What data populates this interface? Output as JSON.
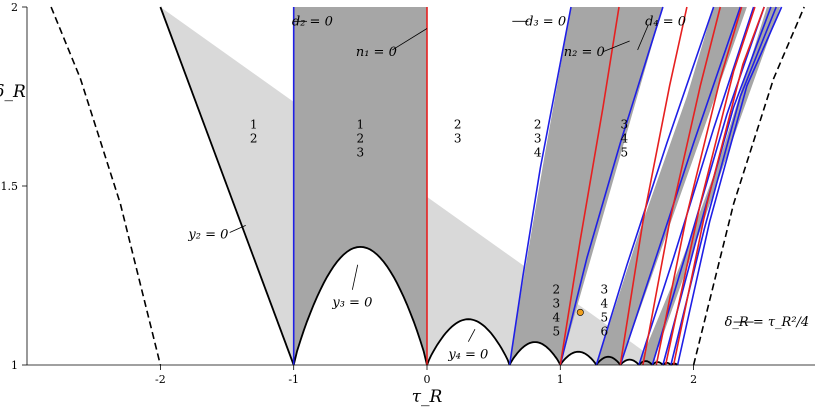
{
  "chart_data": {
    "type": "diagram",
    "xlabel": "τ_R",
    "ylabel": "δ_R",
    "xlim": [
      -3.0,
      2.9
    ],
    "ylim": [
      1.0,
      2.0
    ],
    "x_ticks": [
      "-2",
      "-1",
      "0",
      "1",
      "2"
    ],
    "y_ticks": [
      "1",
      "1.5",
      "2"
    ],
    "colors": {
      "light_region": "#d9d9d9",
      "dark_region": "#a6a6a6",
      "boundary": "#000000",
      "d_curves": "#1f1fe6",
      "n_curves": "#e62020",
      "marker": "#f0a020"
    },
    "curve_labels": [
      {
        "id": "d2",
        "text": "d₂ = 0",
        "x": -0.86,
        "y": 1.96
      },
      {
        "id": "n1",
        "text": "n₁ = 0",
        "x": -0.38,
        "y": 1.875
      },
      {
        "id": "d3",
        "text": "d₃ = 0",
        "x": 0.89,
        "y": 1.96
      },
      {
        "id": "d4",
        "text": "d₄ = 0",
        "x": 1.79,
        "y": 1.96
      },
      {
        "id": "n2",
        "text": "n₂ = 0",
        "x": 1.18,
        "y": 1.875
      },
      {
        "id": "y2",
        "text": "y₂ = 0",
        "x": -1.64,
        "y": 1.365
      },
      {
        "id": "y3",
        "text": "y₃ = 0",
        "x": -0.56,
        "y": 1.175
      },
      {
        "id": "y4",
        "text": "y₄ = 0",
        "x": 0.31,
        "y": 1.03
      },
      {
        "id": "tau-curve",
        "text": "δ_R = τ_R²/4",
        "x": 2.55,
        "y": 1.12
      }
    ],
    "region_labels": [
      {
        "lines": [
          "1",
          "2"
        ],
        "x": -1.3,
        "y": 1.66
      },
      {
        "lines": [
          "1",
          "2",
          "3"
        ],
        "x": -0.5,
        "y": 1.66
      },
      {
        "lines": [
          "2",
          "3"
        ],
        "x": 0.23,
        "y": 1.66
      },
      {
        "lines": [
          "2",
          "3",
          "4"
        ],
        "x": 0.83,
        "y": 1.66
      },
      {
        "lines": [
          "3",
          "4",
          "5"
        ],
        "x": 1.48,
        "y": 1.66
      },
      {
        "lines": [
          "2",
          "3",
          "4",
          "5"
        ],
        "x": 0.97,
        "y": 1.2
      },
      {
        "lines": [
          "3",
          "4",
          "5",
          "6"
        ],
        "x": 1.33,
        "y": 1.2
      }
    ],
    "marker_point": {
      "x": 1.15,
      "y": 1.147
    },
    "dashed_curves": [
      "δ_R = τ_R²/4 (left branch)",
      "δ_R = τ_R²/4 (right branch)"
    ]
  }
}
